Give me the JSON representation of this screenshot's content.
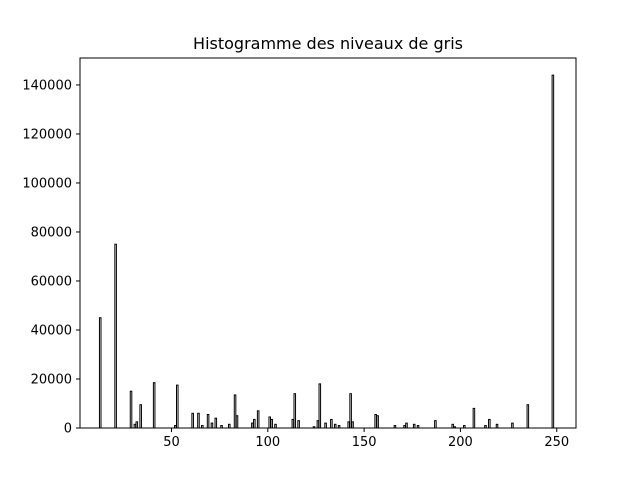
{
  "chart_data": {
    "type": "bar",
    "title": "Histogramme des niveaux de gris",
    "xlabel": "",
    "ylabel": "",
    "xlim": [
      2.5,
      260
    ],
    "ylim": [
      0,
      151000
    ],
    "xticks": [
      50,
      100,
      150,
      200,
      250
    ],
    "yticks": [
      0,
      20000,
      40000,
      60000,
      80000,
      100000,
      120000,
      140000
    ],
    "grid": false,
    "bar_face_color": "#ffffff",
    "bar_edge_color": "#000000",
    "x": [
      13,
      21,
      29,
      31,
      32,
      34,
      41,
      52,
      53,
      61,
      64,
      66,
      69,
      71,
      73,
      76,
      80,
      83,
      84,
      92,
      93,
      95,
      101,
      102,
      104,
      113,
      114,
      116,
      124,
      126,
      127,
      130,
      133,
      135,
      137,
      142,
      143,
      144,
      156,
      157,
      166,
      171,
      172,
      176,
      178,
      187,
      196,
      197,
      202,
      207,
      213,
      215,
      219,
      227,
      235,
      248
    ],
    "values": [
      45000,
      75000,
      15000,
      1500,
      2500,
      9500,
      18500,
      1000,
      17500,
      6000,
      6000,
      1000,
      5500,
      2000,
      4000,
      1000,
      1500,
      13500,
      5000,
      2000,
      3500,
      7000,
      4500,
      3500,
      1500,
      3500,
      14000,
      3000,
      500,
      3000,
      18000,
      2000,
      3500,
      1500,
      1000,
      2500,
      14000,
      2500,
      5500,
      5000,
      1000,
      1000,
      2000,
      1500,
      1000,
      3000,
      1500,
      500,
      1000,
      8000,
      1000,
      3500,
      1500,
      2000,
      9500,
      144000
    ]
  }
}
